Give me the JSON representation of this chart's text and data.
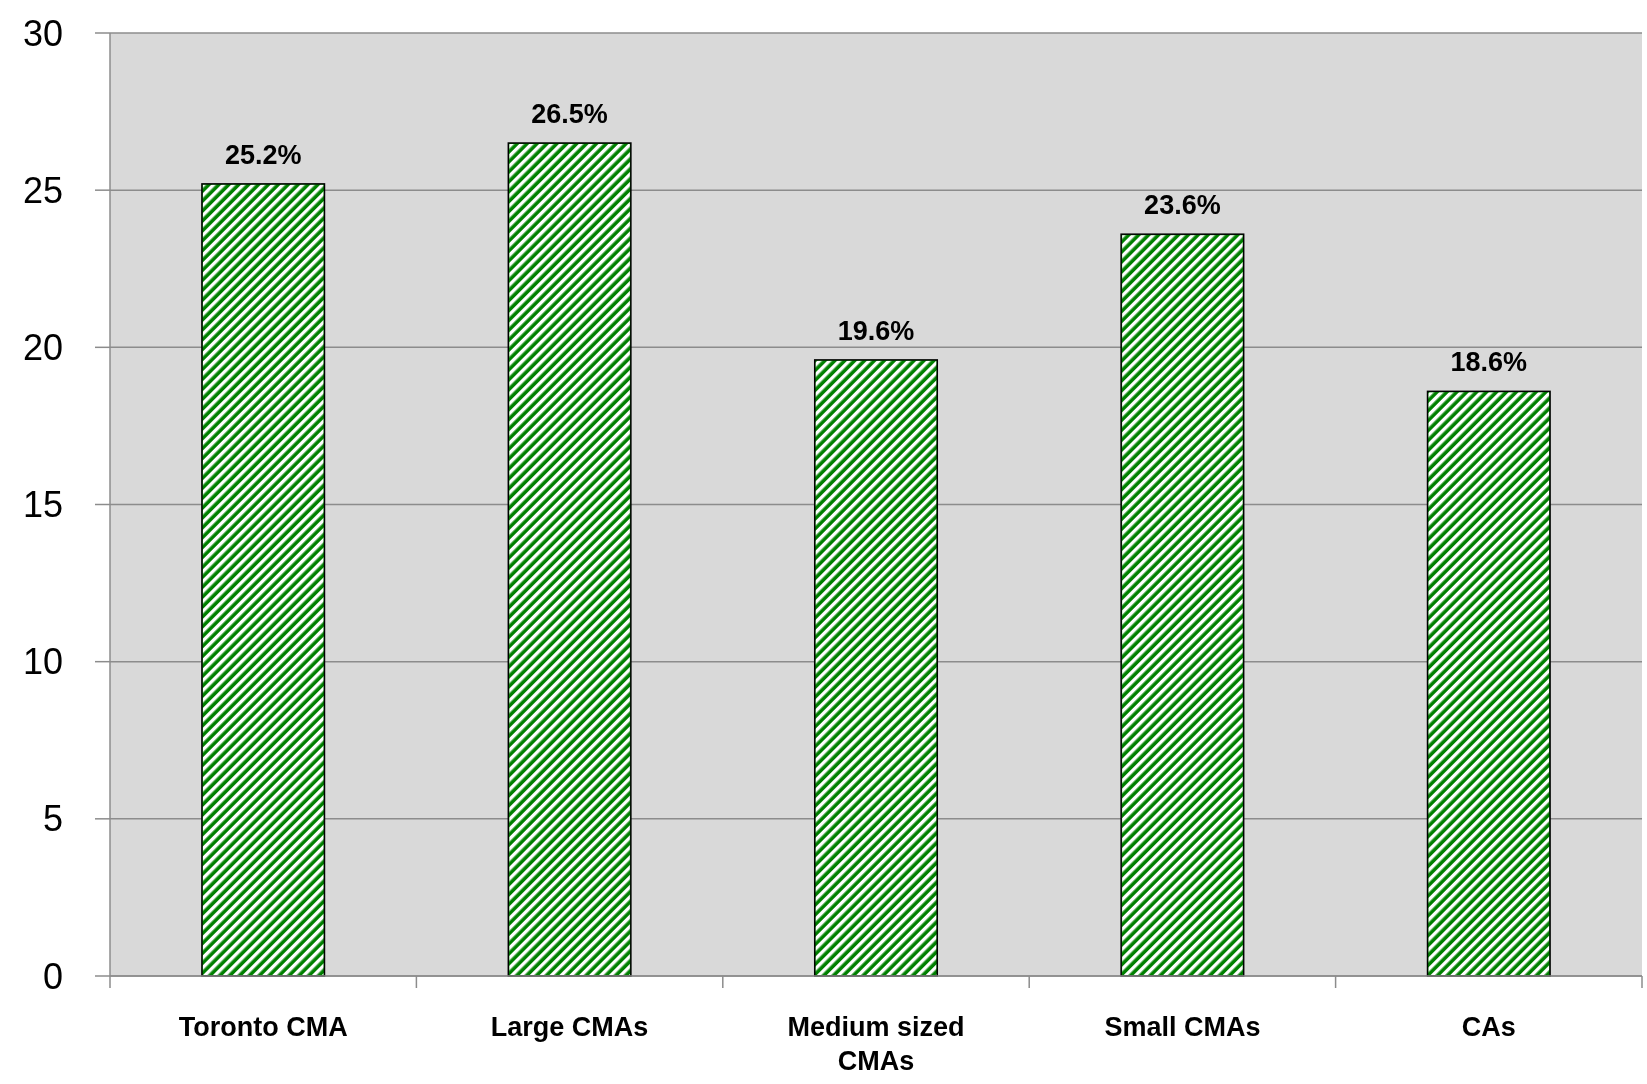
{
  "chart_data": {
    "type": "bar",
    "categories": [
      "Toronto CMA",
      "Large CMAs",
      "Medium sized CMAs",
      "Small CMAs",
      "CAs"
    ],
    "values": [
      25.2,
      26.5,
      19.6,
      23.6,
      18.6
    ],
    "value_labels": [
      "25.2%",
      "26.5%",
      "19.6%",
      "23.6%",
      "18.6%"
    ],
    "color": "#008000",
    "ylim": [
      0,
      30
    ],
    "yticks": [
      0,
      5,
      10,
      15,
      20,
      25,
      30
    ],
    "grid": "y"
  }
}
